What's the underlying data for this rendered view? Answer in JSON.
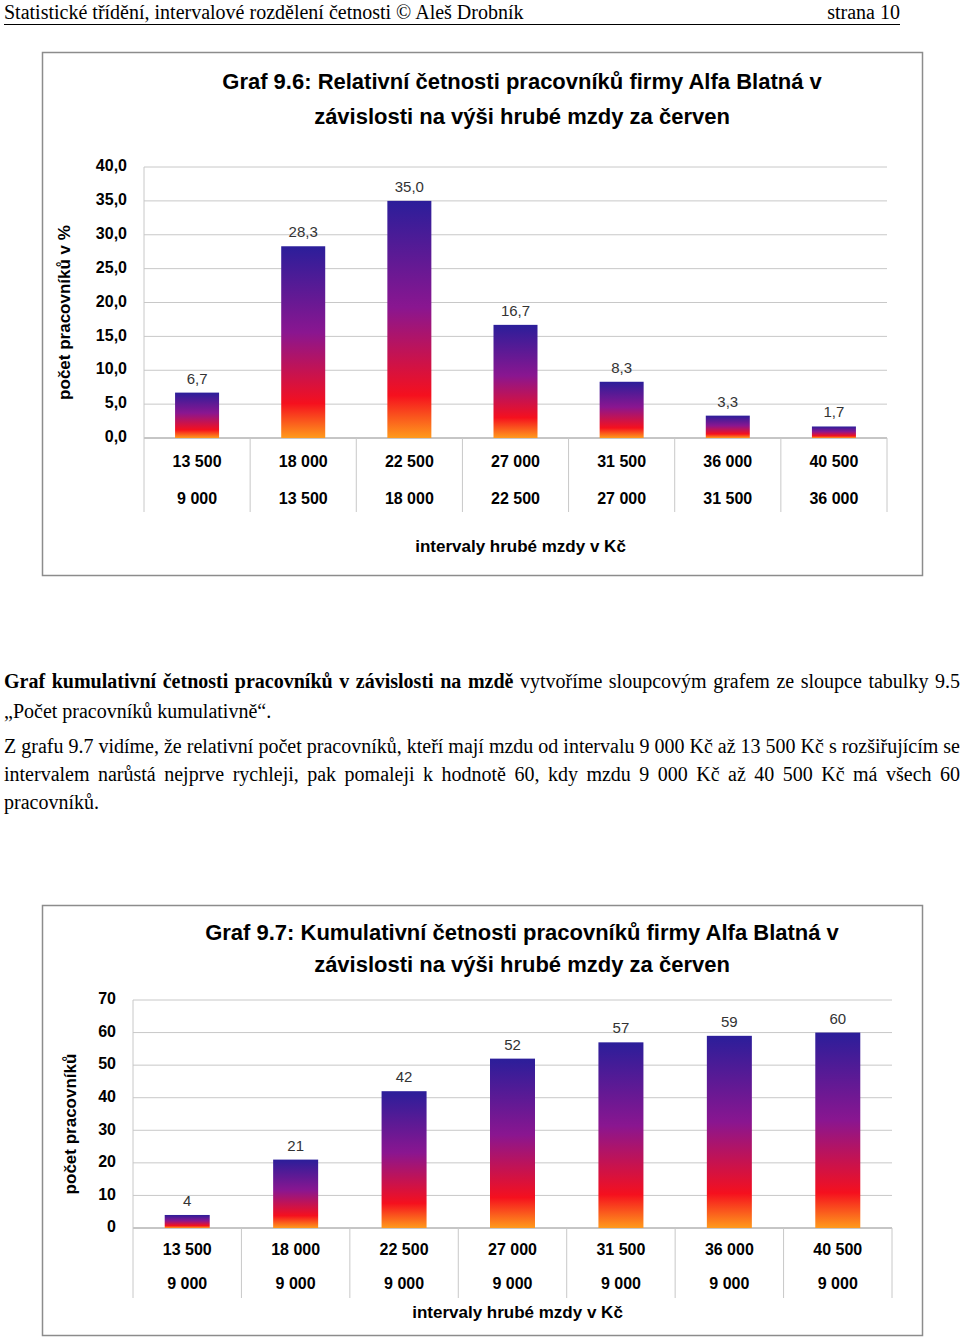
{
  "header": {
    "left": "Statistické třídění, intervalové rozdělení četnosti © Aleš Drobník",
    "right": "strana 10"
  },
  "chart_data": [
    {
      "type": "bar",
      "title": "Graf 9.6: Relativní četnosti pracovníků firmy Alfa Blatná v závislosti na výši hrubé mzdy za červen",
      "x_label": "intervaly hrubé mzdy v Kč",
      "y_label": "počet pracovníků v %",
      "categories": [
        [
          "13 500",
          "9 000"
        ],
        [
          "18 000",
          "13 500"
        ],
        [
          "22 500",
          "18 000"
        ],
        [
          "27 000",
          "22 500"
        ],
        [
          "31 500",
          "27 000"
        ],
        [
          "36 000",
          "31 500"
        ],
        [
          "40 500",
          "36 000"
        ]
      ],
      "values": [
        6.7,
        28.3,
        35.0,
        16.7,
        8.3,
        3.3,
        1.7
      ],
      "value_labels": [
        "6,7",
        "28,3",
        "35,0",
        "16,7",
        "8,3",
        "3,3",
        "1,7"
      ],
      "color": "#2b1e9a",
      "ylim": [
        0,
        40
      ],
      "yticks": [
        {
          "value": 0,
          "label": "0,0"
        },
        {
          "value": 5,
          "label": "5,0"
        },
        {
          "value": 10,
          "label": "10,0"
        },
        {
          "value": 15,
          "label": "15,0"
        },
        {
          "value": 20,
          "label": "20,0"
        },
        {
          "value": 25,
          "label": "25,0"
        },
        {
          "value": 30,
          "label": "30,0"
        },
        {
          "value": 35,
          "label": "35,0"
        },
        {
          "value": 40,
          "label": "40,0"
        }
      ],
      "grid": true,
      "data_labels": true
    },
    {
      "type": "bar",
      "title": "Graf 9.7: Kumulativní četnosti pracovníků firmy Alfa Blatná v závislosti na výši hrubé mzdy za červen",
      "x_label": "intervaly hrubé mzdy v Kč",
      "y_label": "počet pracovníků",
      "categories": [
        [
          "13 500",
          "9 000"
        ],
        [
          "18 000",
          "9 000"
        ],
        [
          "22 500",
          "9 000"
        ],
        [
          "27 000",
          "9 000"
        ],
        [
          "31 500",
          "9 000"
        ],
        [
          "36 000",
          "9 000"
        ],
        [
          "40 500",
          "9 000"
        ]
      ],
      "values": [
        4,
        21,
        42,
        52,
        57,
        59,
        60
      ],
      "color": "#2b1e9a",
      "ylim": [
        0,
        70
      ],
      "yticks": [
        0,
        10,
        20,
        30,
        40,
        50,
        60,
        70
      ],
      "grid": true,
      "data_labels": true
    }
  ],
  "paragraphs": [
    {
      "lead": "Graf kumulativní četnosti pracovníků v závislosti na mzdě",
      "text": "vytvoříme sloupcovým grafem ze sloupce tabulky 9.5 „Počet pracovníků kumulativně“."
    },
    {
      "text": "Z grafu 9.7 vidíme, že relativní počet pracovníků, kteří mají mzdu od intervalu 9 000 Kč až 13 500 Kč s rozšiřujícím se intervalem narůstá nejprve rychleji, pak pomaleji k hodnotě 60, kdy mzdu 9 000 Kč až 40 500 Kč má všech 60 pracovníků."
    }
  ]
}
